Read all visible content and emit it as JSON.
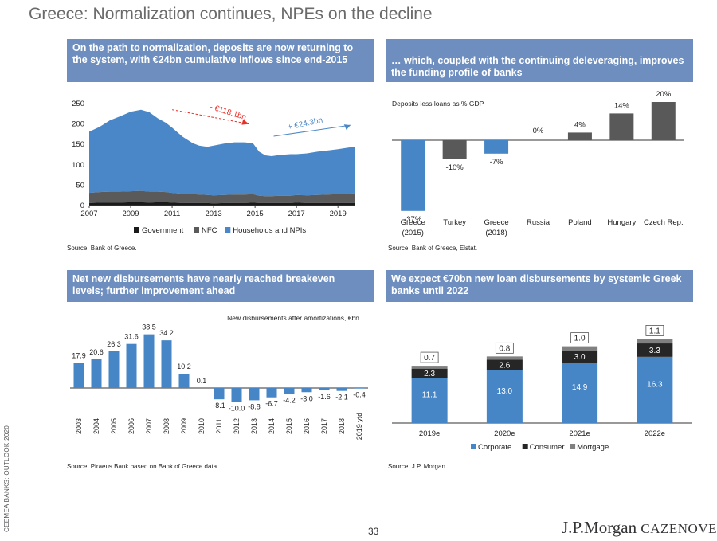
{
  "page": {
    "title": "Greece: Normalization continues, NPEs on the decline",
    "side_label": "CEEMEA BANKS: OUTLOOK 2020",
    "page_number": "33",
    "logo_main": "J.P.Morgan",
    "logo_secondary": "CAZENOVE",
    "colors": {
      "header_bg": "#6d8ebf",
      "bar_blue": "#4685c6",
      "dark": "#2b2b2b",
      "grey": "#7f7f7f",
      "light_grey": "#a6a6a6"
    }
  },
  "panels": {
    "deposits": {
      "header": "On the path to normalization, deposits are now returning to the system, with €24bn cumulative inflows since end-2015",
      "source": "Source: Bank of Greece."
    },
    "funding": {
      "header": "… which, coupled with the continuing deleveraging, improves the funding profile of banks",
      "source": "Source: Bank of Greece, Elstat."
    },
    "disbursements": {
      "header": "Net new disbursements have nearly reached breakeven levels; further improvement ahead",
      "source": "Source: Piraeus Bank based on Bank of Greece data."
    },
    "forecast": {
      "header": "We expect €70bn new loan disbursements by systemic Greek banks until 2022",
      "source": "Source: J.P. Morgan."
    }
  },
  "chart_data": [
    {
      "id": "deposits",
      "type": "area",
      "stacked": true,
      "x_range": [
        2007.0,
        2019.8
      ],
      "ylim": [
        0,
        250
      ],
      "x_ticks": [
        "2007",
        "2009",
        "2011",
        "2013",
        "2015",
        "2017",
        "2019"
      ],
      "y_ticks": [
        "0",
        "50",
        "100",
        "150",
        "200",
        "250"
      ],
      "x": [
        2007.0,
        2007.5,
        2008.0,
        2008.5,
        2009.0,
        2009.5,
        2009.9,
        2010.3,
        2010.7,
        2011.0,
        2011.5,
        2012.0,
        2012.3,
        2012.7,
        2013.0,
        2013.5,
        2014.0,
        2014.5,
        2014.9,
        2015.2,
        2015.5,
        2015.8,
        2016.2,
        2016.7,
        2017.0,
        2017.5,
        2018.0,
        2018.5,
        2019.0,
        2019.5,
        2019.8
      ],
      "series": [
        {
          "name": "Government",
          "values": [
            6,
            7,
            7,
            7,
            8,
            8,
            7,
            8,
            8,
            7,
            6,
            6,
            6,
            6,
            5,
            6,
            6,
            6,
            7,
            6,
            6,
            6,
            6,
            6,
            7,
            6,
            6,
            6,
            6,
            6,
            6
          ]
        },
        {
          "name": "NFC",
          "values": [
            25,
            26,
            27,
            27,
            27,
            28,
            27,
            26,
            25,
            24,
            23,
            22,
            21,
            20,
            20,
            20,
            21,
            21,
            21,
            18,
            17,
            17,
            18,
            18,
            19,
            19,
            20,
            21,
            22,
            23,
            24
          ]
        },
        {
          "name": "Households and NPIs",
          "values": [
            150,
            160,
            175,
            185,
            195,
            199,
            195,
            180,
            170,
            160,
            140,
            125,
            120,
            118,
            122,
            126,
            128,
            128,
            125,
            108,
            100,
            98,
            100,
            102,
            100,
            103,
            106,
            108,
            110,
            113,
            114
          ]
        }
      ],
      "annotations": [
        {
          "text": "- €118.1bn",
          "note": "decline from peak to end-2015"
        },
        {
          "text": "+ €24.3bn",
          "note": "cumulative inflows since end-2015"
        }
      ]
    },
    {
      "id": "funding",
      "type": "bar",
      "title": "Deposits less loans as % GDP",
      "categories": [
        "Greece (2015)",
        "Turkey",
        "Greece (2018)",
        "Russia",
        "Poland",
        "Hungary",
        "Czech Rep."
      ],
      "values": [
        -37,
        -10,
        -7,
        0,
        4,
        14,
        20
      ],
      "labels": [
        "-37%",
        "-10%",
        "-7%",
        "0%",
        "4%",
        "14%",
        "20%"
      ],
      "colors": [
        "#4685c6",
        "#595959",
        "#4685c6",
        "#595959",
        "#595959",
        "#595959",
        "#595959"
      ]
    },
    {
      "id": "disbursements",
      "type": "bar",
      "title": "New disbursements after amortizations, €bn",
      "categories": [
        "2003",
        "2004",
        "2005",
        "2006",
        "2007",
        "2008",
        "2009",
        "2010",
        "2011",
        "2012",
        "2013",
        "2014",
        "2015",
        "2016",
        "2017",
        "2018",
        "2019 ytd"
      ],
      "values": [
        17.9,
        20.6,
        26.3,
        31.6,
        38.5,
        34.2,
        10.2,
        0.1,
        -8.1,
        -10.0,
        -8.8,
        -6.7,
        -4.2,
        -3.0,
        -1.6,
        -2.1,
        -0.4
      ],
      "labels": [
        "17.9",
        "20.6",
        "26.3",
        "31.6",
        "38.5",
        "34.2",
        "10.2",
        "0.1",
        "-8.1",
        "-10.0",
        "-8.8",
        "-6.7",
        "-4.2",
        "-3.0",
        "-1.6",
        "-2.1",
        "-0.4"
      ]
    },
    {
      "id": "forecast",
      "type": "bar",
      "stacked": true,
      "categories": [
        "2019e",
        "2020e",
        "2021e",
        "2022e"
      ],
      "series": [
        {
          "name": "Corporate",
          "values": [
            11.1,
            13.0,
            14.9,
            16.3
          ],
          "labels": [
            "11.1",
            "13.0",
            "14.9",
            "16.3"
          ],
          "color": "#4685c6"
        },
        {
          "name": "Consumer",
          "values": [
            2.3,
            2.6,
            3.0,
            3.3
          ],
          "labels": [
            "2.3",
            "2.6",
            "3.0",
            "3.3"
          ],
          "color": "#262626"
        },
        {
          "name": "Mortgage",
          "values": [
            0.7,
            0.8,
            1.0,
            1.1
          ],
          "labels": [
            "0.7",
            "0.8",
            "1.0",
            "1.1"
          ],
          "color": "#808080"
        }
      ]
    }
  ]
}
